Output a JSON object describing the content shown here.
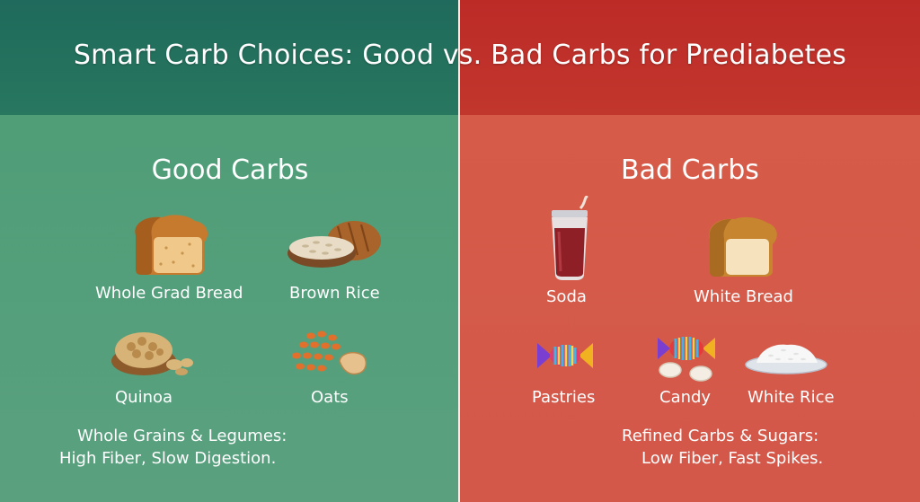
{
  "title": "Smart Carb Choices: Good vs. Bad Carbs for Prediabetes",
  "colors": {
    "good_header": "#1f6a5c",
    "good_body": "#54a07a",
    "bad_header": "#bf2f29",
    "bad_body": "#d55a48"
  },
  "good": {
    "heading": "Good Carbs",
    "items": [
      {
        "label": "Whole Grad Bread",
        "icon": "bread-loaf-icon"
      },
      {
        "label": "Brown Rice",
        "icon": "rice-bowl-icon"
      },
      {
        "label": "Quinoa",
        "icon": "nuts-bowl-icon"
      },
      {
        "label": "Oats",
        "icon": "lentils-icon"
      }
    ],
    "summary_line1": "Whole Grains & Legumes:",
    "summary_line2": "High Fiber, Slow Digestion."
  },
  "bad": {
    "heading": "Bad Carbs",
    "items": [
      {
        "label": "Soda",
        "icon": "soda-glass-icon"
      },
      {
        "label": "White Bread",
        "icon": "white-bread-icon"
      },
      {
        "label": "Pastries",
        "icon": "candy-icon"
      },
      {
        "label": "Candy",
        "icon": "candies-icon"
      },
      {
        "label": "White Rice",
        "icon": "white-rice-plate-icon"
      }
    ],
    "summary_line1": "Refined Carbs & Sugars:",
    "summary_line2": "Low Fiber, Fast Spikes."
  }
}
